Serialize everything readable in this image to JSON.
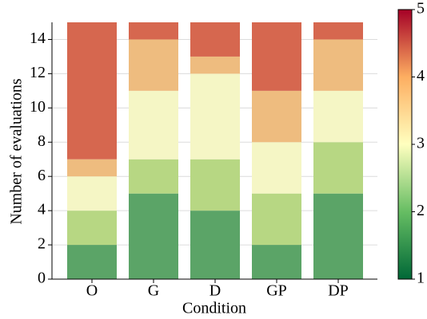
{
  "chart_data": {
    "type": "stacked_bar",
    "x_label": "Condition",
    "y_label": "Number of evaluations",
    "categories": [
      "O",
      "G",
      "D",
      "GP",
      "DP"
    ],
    "series": [
      {
        "color": "#5ba467",
        "values": [
          2,
          5,
          4,
          2,
          5
        ]
      },
      {
        "color": "#b7d783",
        "values": [
          2,
          2,
          3,
          3,
          3
        ]
      },
      {
        "color": "#f5f6c5",
        "values": [
          2,
          4,
          5,
          3,
          3
        ]
      },
      {
        "color": "#eebc7f",
        "values": [
          1,
          3,
          1,
          3,
          3
        ]
      },
      {
        "color": "#d6674f",
        "values": [
          8,
          1,
          2,
          4,
          1
        ]
      }
    ],
    "ylim": [
      0,
      15
    ],
    "yticks": [
      0,
      2,
      4,
      6,
      8,
      10,
      12,
      14
    ],
    "grid": true,
    "colorbar": {
      "ylim": [
        1,
        5
      ],
      "yticks": [
        1,
        2,
        3,
        4,
        5
      ],
      "colors": [
        "#006837",
        "#66bd63",
        "#ffffbf",
        "#fdae61",
        "#a50026"
      ]
    }
  }
}
